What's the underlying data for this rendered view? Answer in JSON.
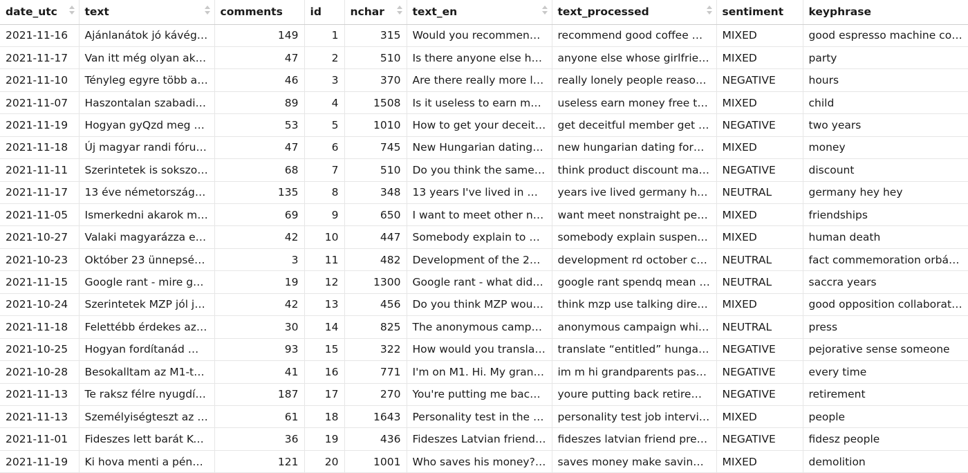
{
  "columns": [
    {
      "key": "date_utc",
      "label": "date_utc",
      "sortable": true,
      "align": "left"
    },
    {
      "key": "text",
      "label": "text",
      "sortable": true,
      "align": "left"
    },
    {
      "key": "comments",
      "label": "comments",
      "sortable": false,
      "align": "right"
    },
    {
      "key": "id",
      "label": "id",
      "sortable": false,
      "align": "right"
    },
    {
      "key": "nchar",
      "label": "nchar",
      "sortable": true,
      "align": "right"
    },
    {
      "key": "text_en",
      "label": "text_en",
      "sortable": true,
      "align": "left"
    },
    {
      "key": "text_processed",
      "label": "text_processed",
      "sortable": true,
      "align": "left"
    },
    {
      "key": "sentiment",
      "label": "sentiment",
      "sortable": false,
      "align": "left"
    },
    {
      "key": "keyphrase",
      "label": "keyphrase",
      "sortable": false,
      "align": "left"
    }
  ],
  "rows": [
    [
      "2021-11-16",
      "Ajánlanátok jó kávégé…",
      "149",
      "1",
      "315",
      "Would you recommend …",
      "recommend good coffee m…",
      "MIXED",
      "good espresso machine co…"
    ],
    [
      "2021-11-17",
      "Van itt még olyan aki…",
      "47",
      "2",
      "510",
      "Is there anyone else he…",
      "anyone else whose girlfrien…",
      "MIXED",
      "party"
    ],
    [
      "2021-11-10",
      "Tényleg egyre több a …",
      "46",
      "3",
      "370",
      "Are there really more lo…",
      "really lonely people reason …",
      "NEGATIVE",
      "hours"
    ],
    [
      "2021-11-07",
      "Haszontalan szabadid…",
      "89",
      "4",
      "1508",
      "Is it useless to earn mo…",
      "useless earn money free ti…",
      "MIXED",
      "child"
    ],
    [
      "2021-11-19",
      "Hogyan gyQzd meg a …",
      "53",
      "5",
      "1010",
      "How to get your deceitf…",
      "get deceitful member get v…",
      "NEGATIVE",
      "two years"
    ],
    [
      "2021-11-18",
      "Új magyar randi fóru…",
      "47",
      "6",
      "745",
      "New Hungarian dating f…",
      "new hungarian dating foru…",
      "MIXED",
      "money"
    ],
    [
      "2021-11-11",
      "Szerintetek is sokszor…",
      "68",
      "7",
      "510",
      "Do you think the same …",
      "think product discount ma…",
      "NEGATIVE",
      "discount"
    ],
    [
      "2021-11-17",
      "13 éve németországb…",
      "135",
      "8",
      "348",
      "13 years I've lived in Ge…",
      "years ive lived germany he…",
      "NEUTRAL",
      "germany hey hey"
    ],
    [
      "2021-11-05",
      "Ismerkedni akarok m…",
      "69",
      "9",
      "650",
      "I want to meet other no…",
      "want meet nonstraight peo…",
      "MIXED",
      "friendships"
    ],
    [
      "2021-10-27",
      "Valaki magyarázza el …",
      "42",
      "10",
      "447",
      "Somebody explain to m…",
      "somebody explain suspend…",
      "MIXED",
      "human death"
    ],
    [
      "2021-10-23",
      "Október 23 ünnepség…",
      "3",
      "11",
      "482",
      "Development of the 23…",
      "development rd october ce…",
      "NEUTRAL",
      "fact commemoration orbán…"
    ],
    [
      "2021-11-15",
      "Google rant - mire go…",
      "19",
      "12",
      "1300",
      "Google rant - what did …",
      "google rant spendq mean …",
      "NEUTRAL",
      "saccra years"
    ],
    [
      "2021-10-24",
      "Szerintetek MZP jól jö…",
      "42",
      "13",
      "456",
      "Do you think MZP woul…",
      "think mzp use talking direc…",
      "MIXED",
      "good opposition collaborati…"
    ],
    [
      "2021-11-18",
      "Felettébb érdekes az …",
      "30",
      "14",
      "825",
      "The anonymous campai…",
      "anonymous campaign whip…",
      "NEUTRAL",
      "press"
    ],
    [
      "2021-10-25",
      "Hogyan fordítanád m…",
      "93",
      "15",
      "322",
      "How would you translat…",
      "translate “entitled” hungari…",
      "NEGATIVE",
      "pejorative sense someone"
    ],
    [
      "2021-10-28",
      "Besokalltam az M1-t…",
      "41",
      "16",
      "771",
      "I'm on M1. Hi. My gran…",
      "im m hi grandparents past …",
      "NEGATIVE",
      "every time"
    ],
    [
      "2021-11-13",
      "Te raksz félre nyugdíj…",
      "187",
      "17",
      "270",
      "You're putting me back…",
      "youre putting back retirem…",
      "NEGATIVE",
      "retirement"
    ],
    [
      "2021-11-13",
      "Személyiségteszt az á…",
      "61",
      "18",
      "1643",
      "Personality test in the j…",
      "personality test job intervie…",
      "MIXED",
      "people"
    ],
    [
      "2021-11-01",
      "Fideszes lett barát Ko…",
      "36",
      "19",
      "436",
      "Fideszes Latvian friend …",
      "fideszes latvian friend prev…",
      "NEGATIVE",
      "fidesz people"
    ],
    [
      "2021-11-19",
      "Ki hova menti a pénz…",
      "121",
      "20",
      "1001",
      "Who saves his money? …",
      "saves money make savings…",
      "MIXED",
      "demolition"
    ]
  ]
}
